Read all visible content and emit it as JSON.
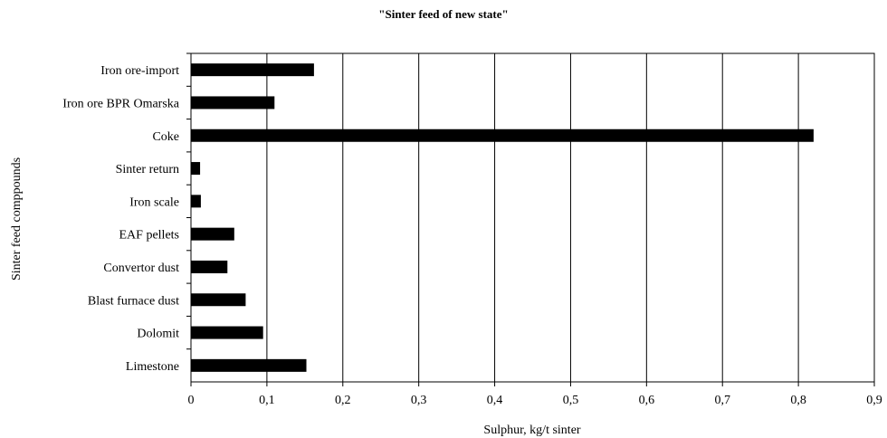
{
  "chart_data": {
    "type": "bar",
    "orientation": "horizontal",
    "title": "\"Sinter feed of new state\"",
    "xlabel": "Sulphur, kg/t sinter",
    "ylabel": "Sinter feed comppounds",
    "categories": [
      "Iron ore-import",
      "Iron ore BPR Omarska",
      "Coke",
      "Sinter return",
      "Iron scale",
      "EAF pellets",
      "Convertor dust",
      "Blast furnace dust",
      "Dolomit",
      "Limestone"
    ],
    "values": [
      0.162,
      0.11,
      0.82,
      0.012,
      0.013,
      0.057,
      0.048,
      0.072,
      0.095,
      0.152
    ],
    "xlim": [
      0,
      0.9
    ],
    "xticks": [
      "0",
      "0,1",
      "0,2",
      "0,3",
      "0,4",
      "0,5",
      "0,6",
      "0,7",
      "0,8",
      "0,9"
    ],
    "grid": "vertical",
    "legend": "none",
    "bar_color": "#000000"
  }
}
